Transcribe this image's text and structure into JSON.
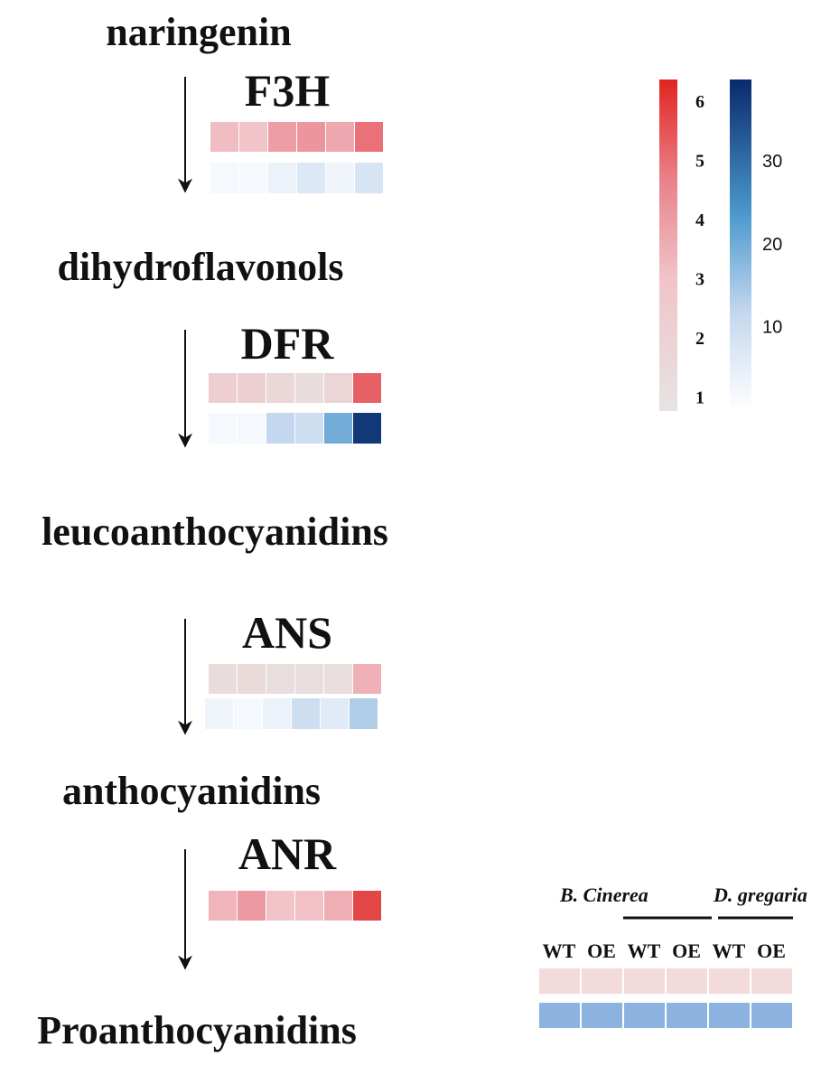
{
  "compounds": [
    "naringenin",
    "dihydroflavonols",
    "leucoanthocyanidins",
    "anthocyanidins",
    "Proanthocyanidins"
  ],
  "enzymes": [
    {
      "name": "F3H",
      "red": [
        3.2,
        3.0,
        4.0,
        4.2,
        3.7,
        5.0
      ],
      "blue": [
        2,
        2,
        4,
        7,
        3,
        8
      ]
    },
    {
      "name": "DFR",
      "red": [
        2.2,
        2.2,
        1.7,
        1.3,
        1.8,
        5.3
      ],
      "blue": [
        2,
        2,
        12,
        10,
        20,
        38
      ]
    },
    {
      "name": "ANS",
      "red": [
        1.3,
        1.5,
        1.2,
        1.2,
        1.2,
        3.5
      ],
      "blue": [
        3,
        2,
        4,
        10,
        6,
        14
      ]
    },
    {
      "name": "ANR",
      "red": [
        3.4,
        4.1,
        3.0,
        3.1,
        3.6,
        5.8
      ]
    }
  ],
  "red_scale": {
    "lim": [
      0.8,
      6.4
    ],
    "ticks": [
      1,
      2,
      3,
      4,
      5,
      6
    ]
  },
  "blue_scale": {
    "lim": [
      0,
      40
    ],
    "ticks": [
      10,
      20,
      30
    ]
  },
  "legend": {
    "groups": [
      "B. Cinerea",
      "D. gregaria"
    ],
    "columns": [
      "WT",
      "OE",
      "WT",
      "OE",
      "WT",
      "OE"
    ]
  }
}
